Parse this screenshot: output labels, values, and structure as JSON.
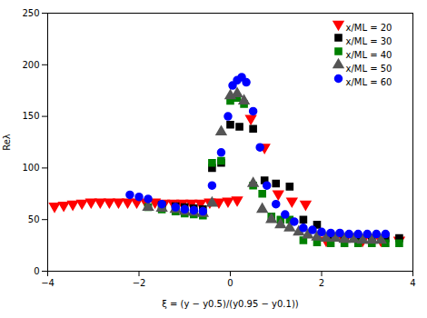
{
  "chart_data": {
    "type": "scatter",
    "title": "",
    "xlabel": "ξ = (y − y0.5)/(y0.95 − y0.1))",
    "ylabel": "Reλ",
    "xlim": [
      -4,
      4
    ],
    "ylim": [
      0,
      250
    ],
    "xticks": [
      -4,
      -2,
      0,
      2,
      4
    ],
    "yticks": [
      0,
      50,
      100,
      150,
      200,
      250
    ],
    "grid": false,
    "legend": "upper right",
    "series": [
      {
        "name": "x/ML = 20",
        "color": "#ff0000",
        "marker": "triangle-down",
        "x": [
          -3.85,
          -3.65,
          -3.45,
          -3.25,
          -3.05,
          -2.85,
          -2.65,
          -2.45,
          -2.25,
          -2.05,
          -1.85,
          -1.65,
          -1.45,
          -1.25,
          -1.05,
          -0.85,
          -0.65,
          -0.45,
          -0.25,
          -0.05,
          0.15,
          0.45,
          0.75,
          1.05,
          1.35,
          1.65,
          2.1,
          2.5,
          2.9,
          3.3,
          3.7
        ],
        "values": [
          63,
          64,
          65,
          66,
          67,
          67,
          67,
          67,
          67,
          67,
          67,
          67,
          66,
          66,
          66,
          66,
          66,
          67,
          67,
          68,
          69,
          148,
          120,
          75,
          68,
          65,
          30,
          30,
          30,
          30,
          30
        ]
      },
      {
        "name": "x/ML = 30",
        "color": "#000000",
        "marker": "square",
        "x": [
          -1.5,
          -1.2,
          -1.0,
          -0.8,
          -0.6,
          -0.4,
          -0.2,
          0.0,
          0.2,
          0.5,
          0.75,
          1.0,
          1.3,
          1.6,
          1.9,
          2.2,
          2.5,
          2.8,
          3.1,
          3.4,
          3.7
        ],
        "values": [
          64,
          63,
          62,
          61,
          60,
          100,
          105,
          142,
          140,
          138,
          88,
          85,
          82,
          50,
          45,
          33,
          32,
          32,
          32,
          32,
          32
        ]
      },
      {
        "name": "x/ML = 40",
        "color": "#008000",
        "marker": "square",
        "x": [
          -1.8,
          -1.5,
          -1.2,
          -1.0,
          -0.8,
          -0.6,
          -0.4,
          -0.2,
          0.0,
          0.15,
          0.3,
          0.5,
          0.7,
          0.9,
          1.1,
          1.3,
          1.6,
          1.9,
          2.2,
          2.5,
          2.8,
          3.1,
          3.4,
          3.7
        ],
        "values": [
          62,
          60,
          58,
          56,
          55,
          54,
          105,
          107,
          165,
          168,
          162,
          83,
          75,
          53,
          50,
          50,
          30,
          28,
          27,
          27,
          27,
          27,
          27,
          27
        ]
      },
      {
        "name": "x/ML = 50",
        "color": "#555555",
        "marker": "triangle",
        "x": [
          -1.8,
          -1.5,
          -1.2,
          -1.0,
          -0.8,
          -0.6,
          -0.4,
          -0.2,
          0.0,
          0.15,
          0.3,
          0.5,
          0.7,
          0.9,
          1.1,
          1.3,
          1.5,
          1.7,
          1.9,
          2.1,
          2.3,
          2.5,
          2.7,
          2.9,
          3.1,
          3.3
        ],
        "values": [
          62,
          61,
          60,
          58,
          57,
          56,
          66,
          135,
          170,
          172,
          165,
          85,
          60,
          50,
          45,
          42,
          38,
          35,
          33,
          32,
          32,
          31,
          31,
          30,
          30,
          30
        ]
      },
      {
        "name": "x/ML = 60",
        "color": "#0000ff",
        "marker": "circle",
        "x": [
          -2.2,
          -2.0,
          -1.8,
          -1.5,
          -1.2,
          -1.0,
          -0.8,
          -0.6,
          -0.4,
          -0.2,
          -0.05,
          0.05,
          0.15,
          0.25,
          0.35,
          0.5,
          0.65,
          0.8,
          1.0,
          1.2,
          1.4,
          1.6,
          1.8,
          2.0,
          2.2,
          2.4,
          2.6,
          2.8,
          3.0,
          3.2,
          3.4
        ],
        "values": [
          74,
          72,
          70,
          65,
          62,
          60,
          59,
          58,
          83,
          115,
          150,
          180,
          185,
          188,
          183,
          155,
          120,
          83,
          65,
          55,
          48,
          42,
          40,
          38,
          37,
          37,
          36,
          36,
          36,
          36,
          36
        ]
      }
    ]
  }
}
